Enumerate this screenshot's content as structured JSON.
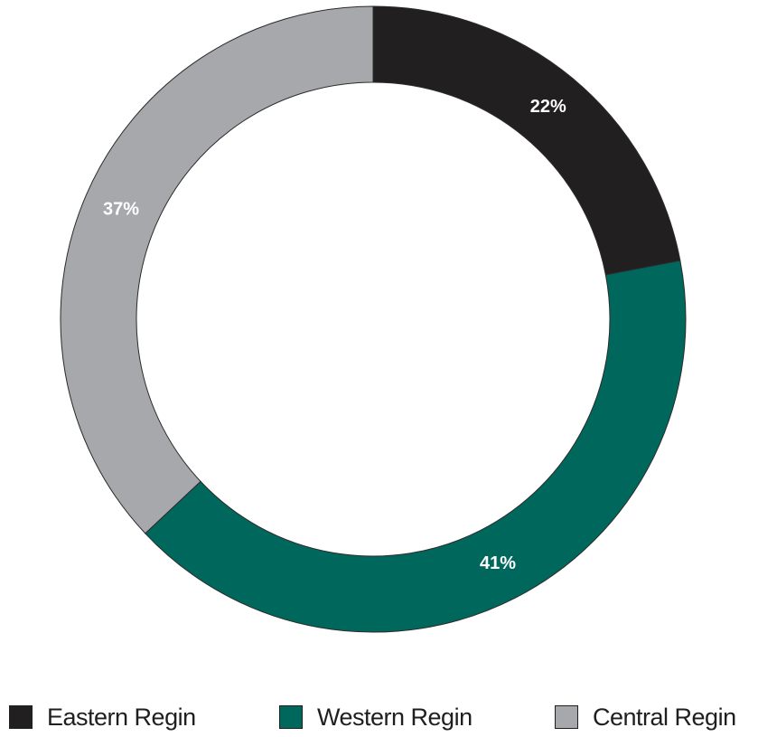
{
  "chart_data": {
    "type": "pie",
    "variant": "donut",
    "title": "",
    "categories": [
      "Eastern Regin",
      "Western Regin",
      "Central Regin"
    ],
    "values": [
      22,
      41,
      37
    ],
    "labels": [
      "22%",
      "41%",
      "37%"
    ],
    "colors": [
      "#221f20",
      "#00675d",
      "#a7a8ab"
    ],
    "legend_position": "bottom",
    "start_angle": "12 o'clock",
    "direction": "clockwise"
  }
}
